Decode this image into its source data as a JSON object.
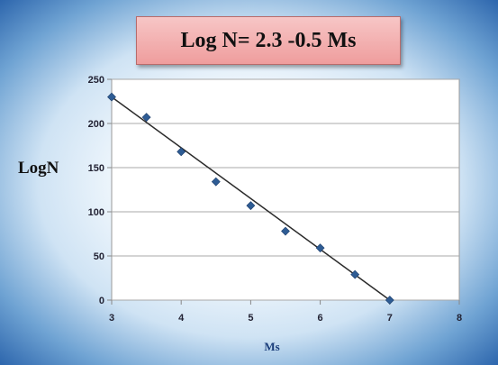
{
  "chart_data": {
    "type": "scatter",
    "title": "Log N= 2.3 -0.5 Ms",
    "xlabel": "Ms",
    "ylabel": "LogN",
    "xlim": [
      3,
      8
    ],
    "ylim": [
      0,
      250
    ],
    "xticks": [
      3,
      4,
      5,
      6,
      7,
      8
    ],
    "yticks": [
      0,
      50,
      100,
      150,
      200,
      250
    ],
    "grid": "horizontal",
    "series": [
      {
        "color": "#2e5c94",
        "points": [
          [
            3,
            230
          ],
          [
            3.5,
            207
          ],
          [
            4,
            168
          ],
          [
            4.5,
            134
          ],
          [
            5,
            107
          ],
          [
            5.5,
            78
          ],
          [
            6,
            59
          ],
          [
            6.5,
            29
          ],
          [
            7,
            0
          ]
        ]
      }
    ],
    "trendline": {
      "from": [
        3,
        230
      ],
      "to": [
        7,
        0
      ],
      "color": "#2b2b2b"
    }
  }
}
